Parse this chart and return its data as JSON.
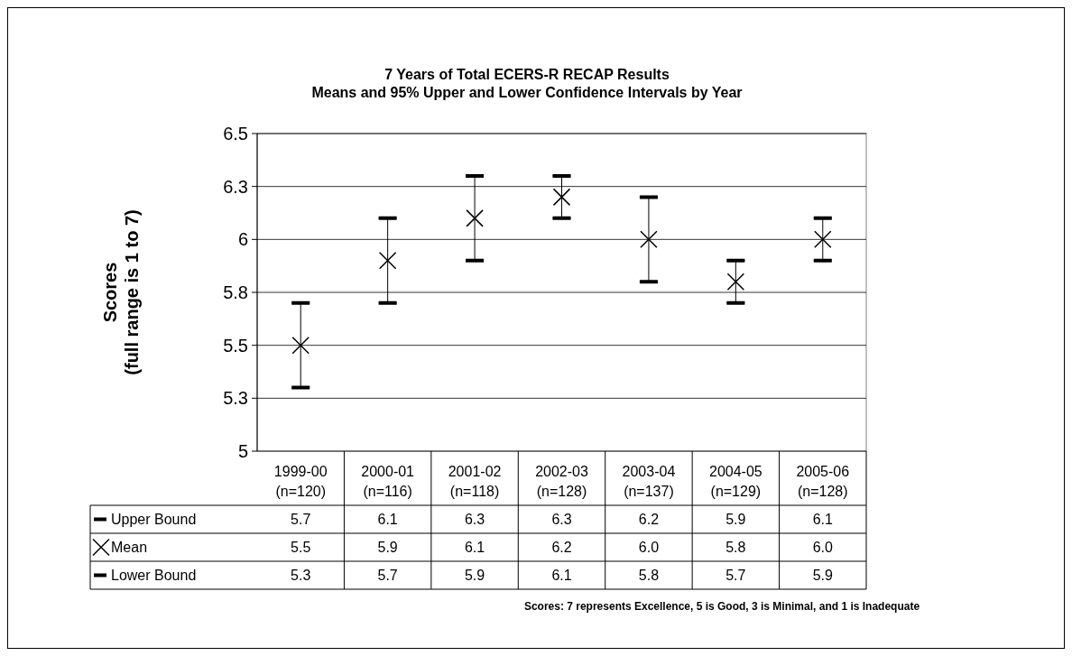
{
  "chart_data": {
    "type": "scatter",
    "title": "7 Years of Total ECERS-R RECAP Results",
    "subtitle": "Means and 95% Upper and Lower Confidence Intervals by Year",
    "ylabel": "Scores\n(full range is 1 to 7)",
    "categories": [
      "1999-00\n(n=120)",
      "2000-01\n(n=116)",
      "2001-02\n(n=118)",
      "2002-03\n(n=128)",
      "2003-04\n(n=137)",
      "2004-05\n(n=129)",
      "2005-06\n(n=128)"
    ],
    "series": [
      {
        "name": "Mean",
        "color": "#000000",
        "marker": "cross",
        "values": [
          5.5,
          5.9,
          6.1,
          6.2,
          6.0,
          5.8,
          6.0
        ],
        "value_labels": [
          "5.5",
          "5.9",
          "6.1",
          "6.2",
          "6.0",
          "5.8",
          "6.0"
        ],
        "errors": [
          [
            5.3,
            5.7
          ],
          [
            5.7,
            6.1
          ],
          [
            5.9,
            6.3
          ],
          [
            6.1,
            6.3
          ],
          [
            5.8,
            6.2
          ],
          [
            5.7,
            5.9
          ],
          [
            5.9,
            6.1
          ]
        ]
      }
    ],
    "ylim": [
      5.0,
      6.5
    ],
    "yticks": [
      5.0,
      {
        "value": 5.25,
        "label": "5.3"
      },
      5.5,
      {
        "value": 5.75,
        "label": "5.8"
      },
      6.0,
      {
        "value": 6.25,
        "label": "6.3"
      },
      6.5
    ],
    "grid": "y",
    "legend": "bottom",
    "annotations": [
      "Upper Bound",
      "Lower Bound",
      "Scores: 7 represents Excellence, 5 is Good, 3 is Minimal, and 1 is Inadequate",
      "5.7",
      "6.1",
      "6.3",
      "6.3",
      "6.2",
      "5.9",
      "6.1",
      "5.3",
      "5.7",
      "5.9",
      "6.1",
      "5.8",
      "5.7",
      "5.9"
    ]
  }
}
